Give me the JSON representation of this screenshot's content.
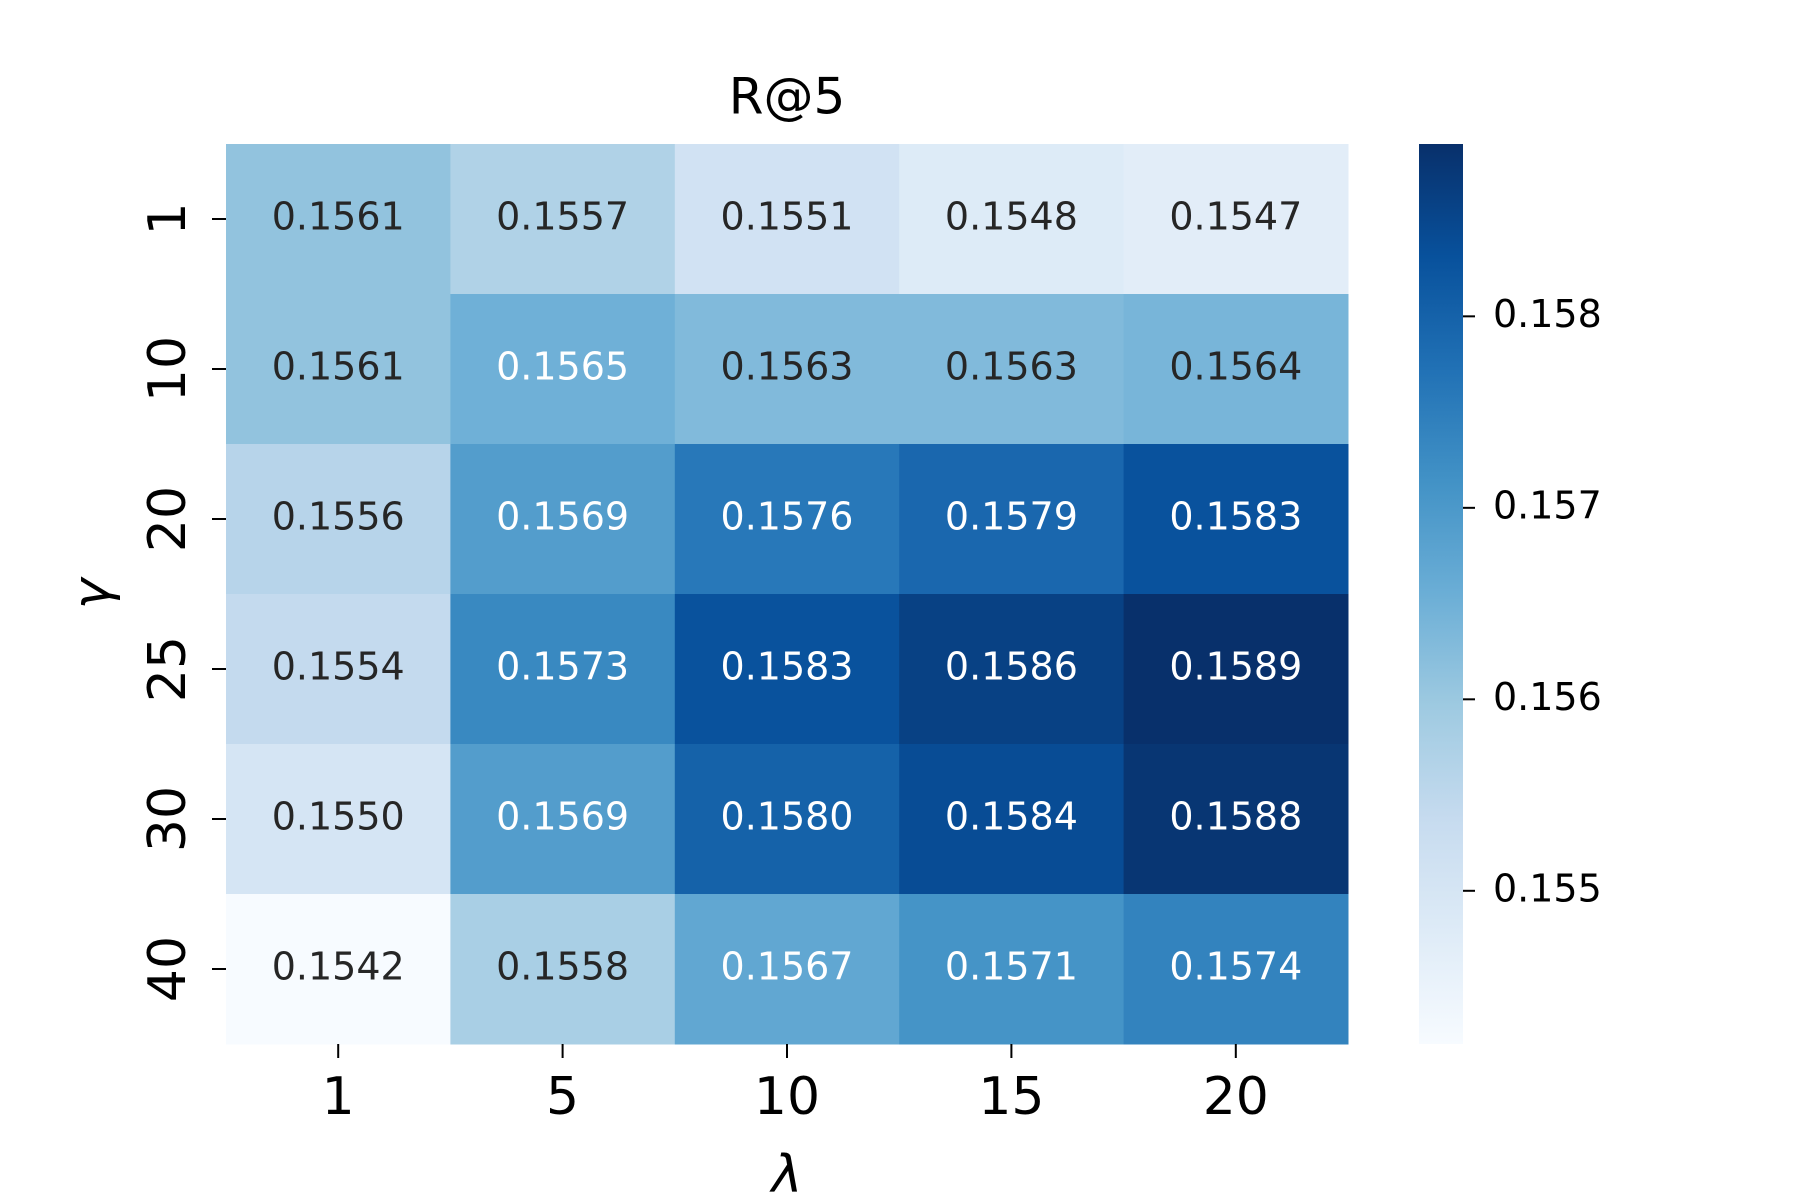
{
  "chart_data": {
    "type": "heatmap",
    "title": "R@5",
    "xlabel": "λ",
    "ylabel": "γ",
    "x_categories": [
      "1",
      "5",
      "10",
      "15",
      "20"
    ],
    "y_categories": [
      "1",
      "10",
      "20",
      "25",
      "30",
      "40"
    ],
    "values": [
      [
        0.1561,
        0.1557,
        0.1551,
        0.1548,
        0.1547
      ],
      [
        0.1561,
        0.1565,
        0.1563,
        0.1563,
        0.1564
      ],
      [
        0.1556,
        0.1569,
        0.1576,
        0.1579,
        0.1583
      ],
      [
        0.1554,
        0.1573,
        0.1583,
        0.1586,
        0.1589
      ],
      [
        0.155,
        0.1569,
        0.158,
        0.1584,
        0.1588
      ],
      [
        0.1542,
        0.1558,
        0.1567,
        0.1571,
        0.1574
      ]
    ],
    "value_labels": [
      [
        "0.1561",
        "0.1557",
        "0.1551",
        "0.1548",
        "0.1547"
      ],
      [
        "0.1561",
        "0.1565",
        "0.1563",
        "0.1563",
        "0.1564"
      ],
      [
        "0.1556",
        "0.1569",
        "0.1576",
        "0.1579",
        "0.1583"
      ],
      [
        "0.1554",
        "0.1573",
        "0.1583",
        "0.1586",
        "0.1589"
      ],
      [
        "0.1550",
        "0.1569",
        "0.1580",
        "0.1584",
        "0.1588"
      ],
      [
        "0.1542",
        "0.1558",
        "0.1567",
        "0.1571",
        "0.1574"
      ]
    ],
    "colormap": [
      "#f7fbff",
      "#deebf7",
      "#c6dbef",
      "#9ecae1",
      "#6baed6",
      "#4292c6",
      "#2171b5",
      "#08519c",
      "#08306b"
    ],
    "clim": [
      0.1542,
      0.1589
    ],
    "cticks": [
      0.155,
      0.156,
      0.157,
      0.158
    ]
  }
}
